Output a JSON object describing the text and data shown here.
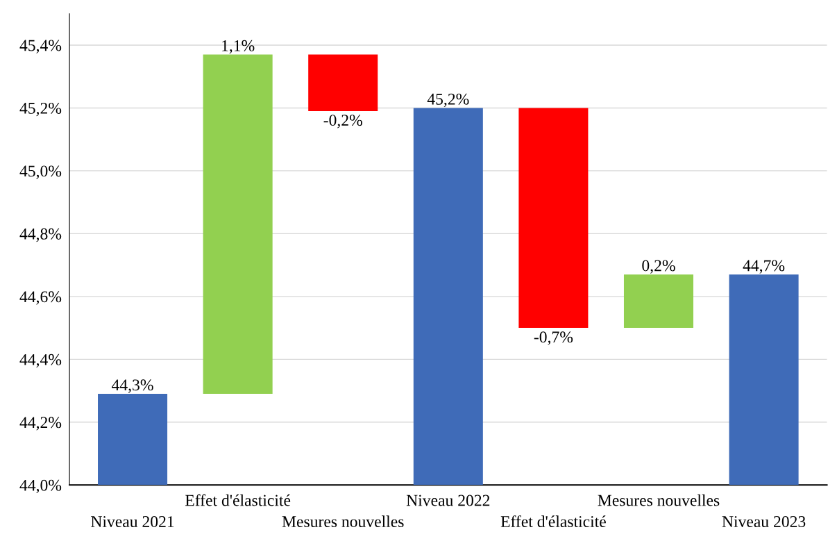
{
  "chart_data": {
    "type": "bar",
    "categories": [
      "Niveau 2021",
      "Effet d'élasticité",
      "Mesures nouvelles",
      "Niveau 2022",
      "Effet d'élasticité",
      "Mesures nouvelles",
      "Niveau 2023"
    ],
    "values": [
      0.29,
      1.08,
      -0.18,
      1.2,
      -0.7,
      0.17,
      0.67
    ],
    "base": [
      44.0,
      44.29,
      45.37,
      44.0,
      45.2,
      44.5,
      44.0
    ],
    "colors": [
      "#3f6bb8",
      "#92d050",
      "#ff0000",
      "#3f6bb8",
      "#ff0000",
      "#92d050",
      "#3f6bb8"
    ],
    "value_labels": [
      "44,3%",
      "1,1%",
      "-0,2%",
      "45,2%",
      "-0,7%",
      "0,2%",
      "44,7%"
    ],
    "ylim": [
      44.0,
      45.5
    ],
    "yticks": [
      {
        "value": 44.0,
        "label": "44,0%"
      },
      {
        "value": 44.2,
        "label": "44,2%"
      },
      {
        "value": 44.4,
        "label": "44,4%"
      },
      {
        "value": 44.6,
        "label": "44,6%"
      },
      {
        "value": 44.8,
        "label": "44,8%"
      },
      {
        "value": 45.0,
        "label": "45,0%"
      },
      {
        "value": 45.2,
        "label": "45,2%"
      },
      {
        "value": 45.4,
        "label": "45,4%"
      }
    ],
    "grid": "y"
  }
}
